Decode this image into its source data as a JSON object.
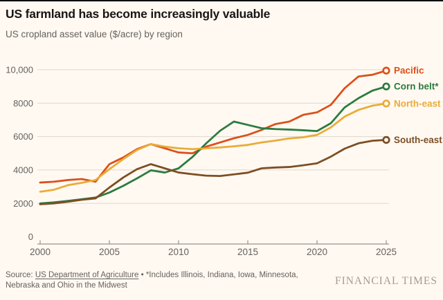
{
  "chart_data": {
    "type": "line",
    "title": "US farmland has become increasingly valuable",
    "subtitle": "US cropland asset value ($/acre) by region",
    "x": [
      2000,
      2001,
      2002,
      2003,
      2004,
      2005,
      2006,
      2007,
      2008,
      2009,
      2010,
      2011,
      2012,
      2013,
      2014,
      2015,
      2016,
      2017,
      2018,
      2019,
      2020,
      2021,
      2022,
      2023,
      2024,
      2025
    ],
    "series": [
      {
        "name": "Pacific",
        "color": "#DC501A",
        "values": [
          3250,
          3300,
          3400,
          3460,
          3300,
          4350,
          4750,
          5250,
          5550,
          5300,
          5050,
          5000,
          5400,
          5650,
          5900,
          6100,
          6400,
          6750,
          6900,
          7300,
          7450,
          7900,
          8900,
          9600,
          9700,
          9950
        ]
      },
      {
        "name": "Corn belt*",
        "color": "#2B7C3F",
        "values": [
          2000,
          2060,
          2150,
          2250,
          2350,
          2650,
          3050,
          3500,
          3980,
          3850,
          4100,
          4780,
          5600,
          6350,
          6900,
          6700,
          6500,
          6450,
          6420,
          6380,
          6330,
          6800,
          7750,
          8300,
          8750,
          9000
        ]
      },
      {
        "name": "North-east",
        "color": "#E9AC38",
        "values": [
          2700,
          2820,
          3090,
          3230,
          3400,
          4050,
          4650,
          5200,
          5550,
          5400,
          5300,
          5250,
          5300,
          5350,
          5420,
          5500,
          5650,
          5760,
          5890,
          5960,
          6100,
          6550,
          7200,
          7600,
          7850,
          7980
        ]
      },
      {
        "name": "South-east",
        "color": "#7D4E24",
        "values": [
          1950,
          2000,
          2100,
          2220,
          2300,
          2950,
          3550,
          4050,
          4350,
          4100,
          3850,
          3750,
          3660,
          3640,
          3740,
          3840,
          4100,
          4150,
          4180,
          4280,
          4400,
          4800,
          5280,
          5600,
          5750,
          5800
        ]
      }
    ],
    "xlabel": "",
    "ylabel": "",
    "ylim": [
      0,
      10000
    ],
    "y_ticks": [
      0,
      2000,
      4000,
      6000,
      8000,
      10000
    ],
    "y_tick_labels": [
      "0",
      "2000",
      "4000",
      "6000",
      "8000",
      "10,000"
    ],
    "x_ticks": [
      2000,
      2005,
      2010,
      2015,
      2020,
      2025
    ],
    "grid": "horizontal-only",
    "legend_position": "right-of-line-ends"
  },
  "footer": {
    "source_prefix": "Source: ",
    "source_link": "US Department of Agriculture",
    "source_rest": " • *Includes Illinois, Indiana, Iowa, Minnesota, Nebraska and Ohio in the Midwest",
    "brand": "FINANCIAL TIMES"
  },
  "colors": {
    "background": "#FFF9F2",
    "grid": "#DFD8CE",
    "axis": "#9A9289",
    "text": "#66605B",
    "title": "#181614",
    "brand": "#A29C92",
    "pacific": "#DC501A",
    "corn_belt": "#2B7C3F",
    "north_east": "#E9AC38",
    "south_east": "#7D4E24"
  }
}
